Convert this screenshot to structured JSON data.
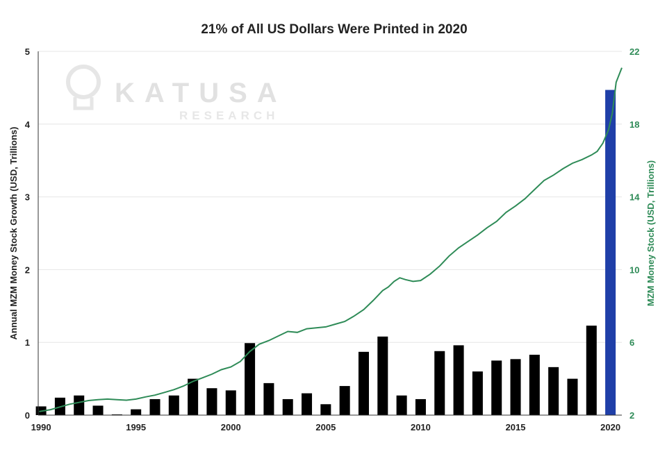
{
  "chart_data": {
    "type": "bar",
    "title": "21% of All US Dollars Were Printed in 2020",
    "ylabel": "Annual MZM Money Stock Growth (USD, Trillions)",
    "y2label": "MZM Money Stock (USD, Trillions)",
    "ylim": [
      0,
      5
    ],
    "y2lim": [
      2,
      22
    ],
    "yticks": [
      "0",
      "1",
      "2",
      "3",
      "4",
      "5"
    ],
    "y2ticks": [
      "2",
      "6",
      "10",
      "14",
      "18",
      "22"
    ],
    "xlim": [
      1989.85,
      2020.6
    ],
    "xticks": [
      "1990",
      "1995",
      "2000",
      "2005",
      "2010",
      "2015",
      "2020"
    ],
    "grid": true,
    "watermark": {
      "main": "KATUSA",
      "sub": "RESEARCH"
    },
    "colors": {
      "bar": "#000000",
      "bar_highlight": "#1f3fa8",
      "line": "#2e8b57",
      "grid": "#e6e6e6",
      "text": "#222222"
    },
    "bars": {
      "years": [
        1990,
        1991,
        1992,
        1993,
        1994,
        1995,
        1996,
        1997,
        1998,
        1999,
        2000,
        2001,
        2002,
        2003,
        2004,
        2005,
        2006,
        2007,
        2008,
        2009,
        2010,
        2011,
        2012,
        2013,
        2014,
        2015,
        2016,
        2017,
        2018,
        2019,
        2020
      ],
      "values": [
        0.12,
        0.24,
        0.27,
        0.13,
        0.01,
        0.08,
        0.22,
        0.27,
        0.5,
        0.37,
        0.34,
        0.99,
        0.44,
        0.22,
        0.3,
        0.15,
        0.4,
        0.87,
        1.08,
        0.27,
        0.22,
        0.88,
        0.96,
        0.6,
        0.75,
        0.77,
        0.83,
        0.66,
        0.5,
        1.23,
        4.47
      ],
      "highlight_year": 2020
    },
    "series": [
      {
        "axis": "right",
        "x": [
          1989.9,
          1990.5,
          1991,
          1991.5,
          1992,
          1992.5,
          1993,
          1993.5,
          1994,
          1994.5,
          1995,
          1995.5,
          1996,
          1996.5,
          1997,
          1997.5,
          1998,
          1998.5,
          1999,
          1999.5,
          2000,
          2000.5,
          2001,
          2001.5,
          2002,
          2002.5,
          2003,
          2003.5,
          2004,
          2004.5,
          2005,
          2005.5,
          2006,
          2006.5,
          2007,
          2007.5,
          2008,
          2008.3,
          2008.6,
          2008.9,
          2009.2,
          2009.6,
          2010,
          2010.5,
          2011,
          2011.5,
          2012,
          2012.5,
          2013,
          2013.5,
          2014,
          2014.5,
          2015,
          2015.5,
          2016,
          2016.5,
          2017,
          2017.5,
          2018,
          2018.5,
          2019,
          2019.3,
          2019.6,
          2019.9,
          2020.1,
          2020.3,
          2020.6
        ],
        "values": [
          2.2,
          2.3,
          2.45,
          2.6,
          2.7,
          2.8,
          2.85,
          2.88,
          2.85,
          2.82,
          2.88,
          3.0,
          3.1,
          3.25,
          3.4,
          3.6,
          3.85,
          4.05,
          4.25,
          4.5,
          4.65,
          4.95,
          5.5,
          5.9,
          6.1,
          6.35,
          6.6,
          6.55,
          6.75,
          6.8,
          6.85,
          7.0,
          7.15,
          7.45,
          7.8,
          8.3,
          8.85,
          9.05,
          9.35,
          9.55,
          9.45,
          9.35,
          9.4,
          9.75,
          10.2,
          10.75,
          11.2,
          11.55,
          11.9,
          12.3,
          12.65,
          13.15,
          13.5,
          13.9,
          14.4,
          14.9,
          15.2,
          15.55,
          15.85,
          16.05,
          16.3,
          16.5,
          16.95,
          17.7,
          18.6,
          20.3,
          21.1
        ]
      }
    ]
  }
}
